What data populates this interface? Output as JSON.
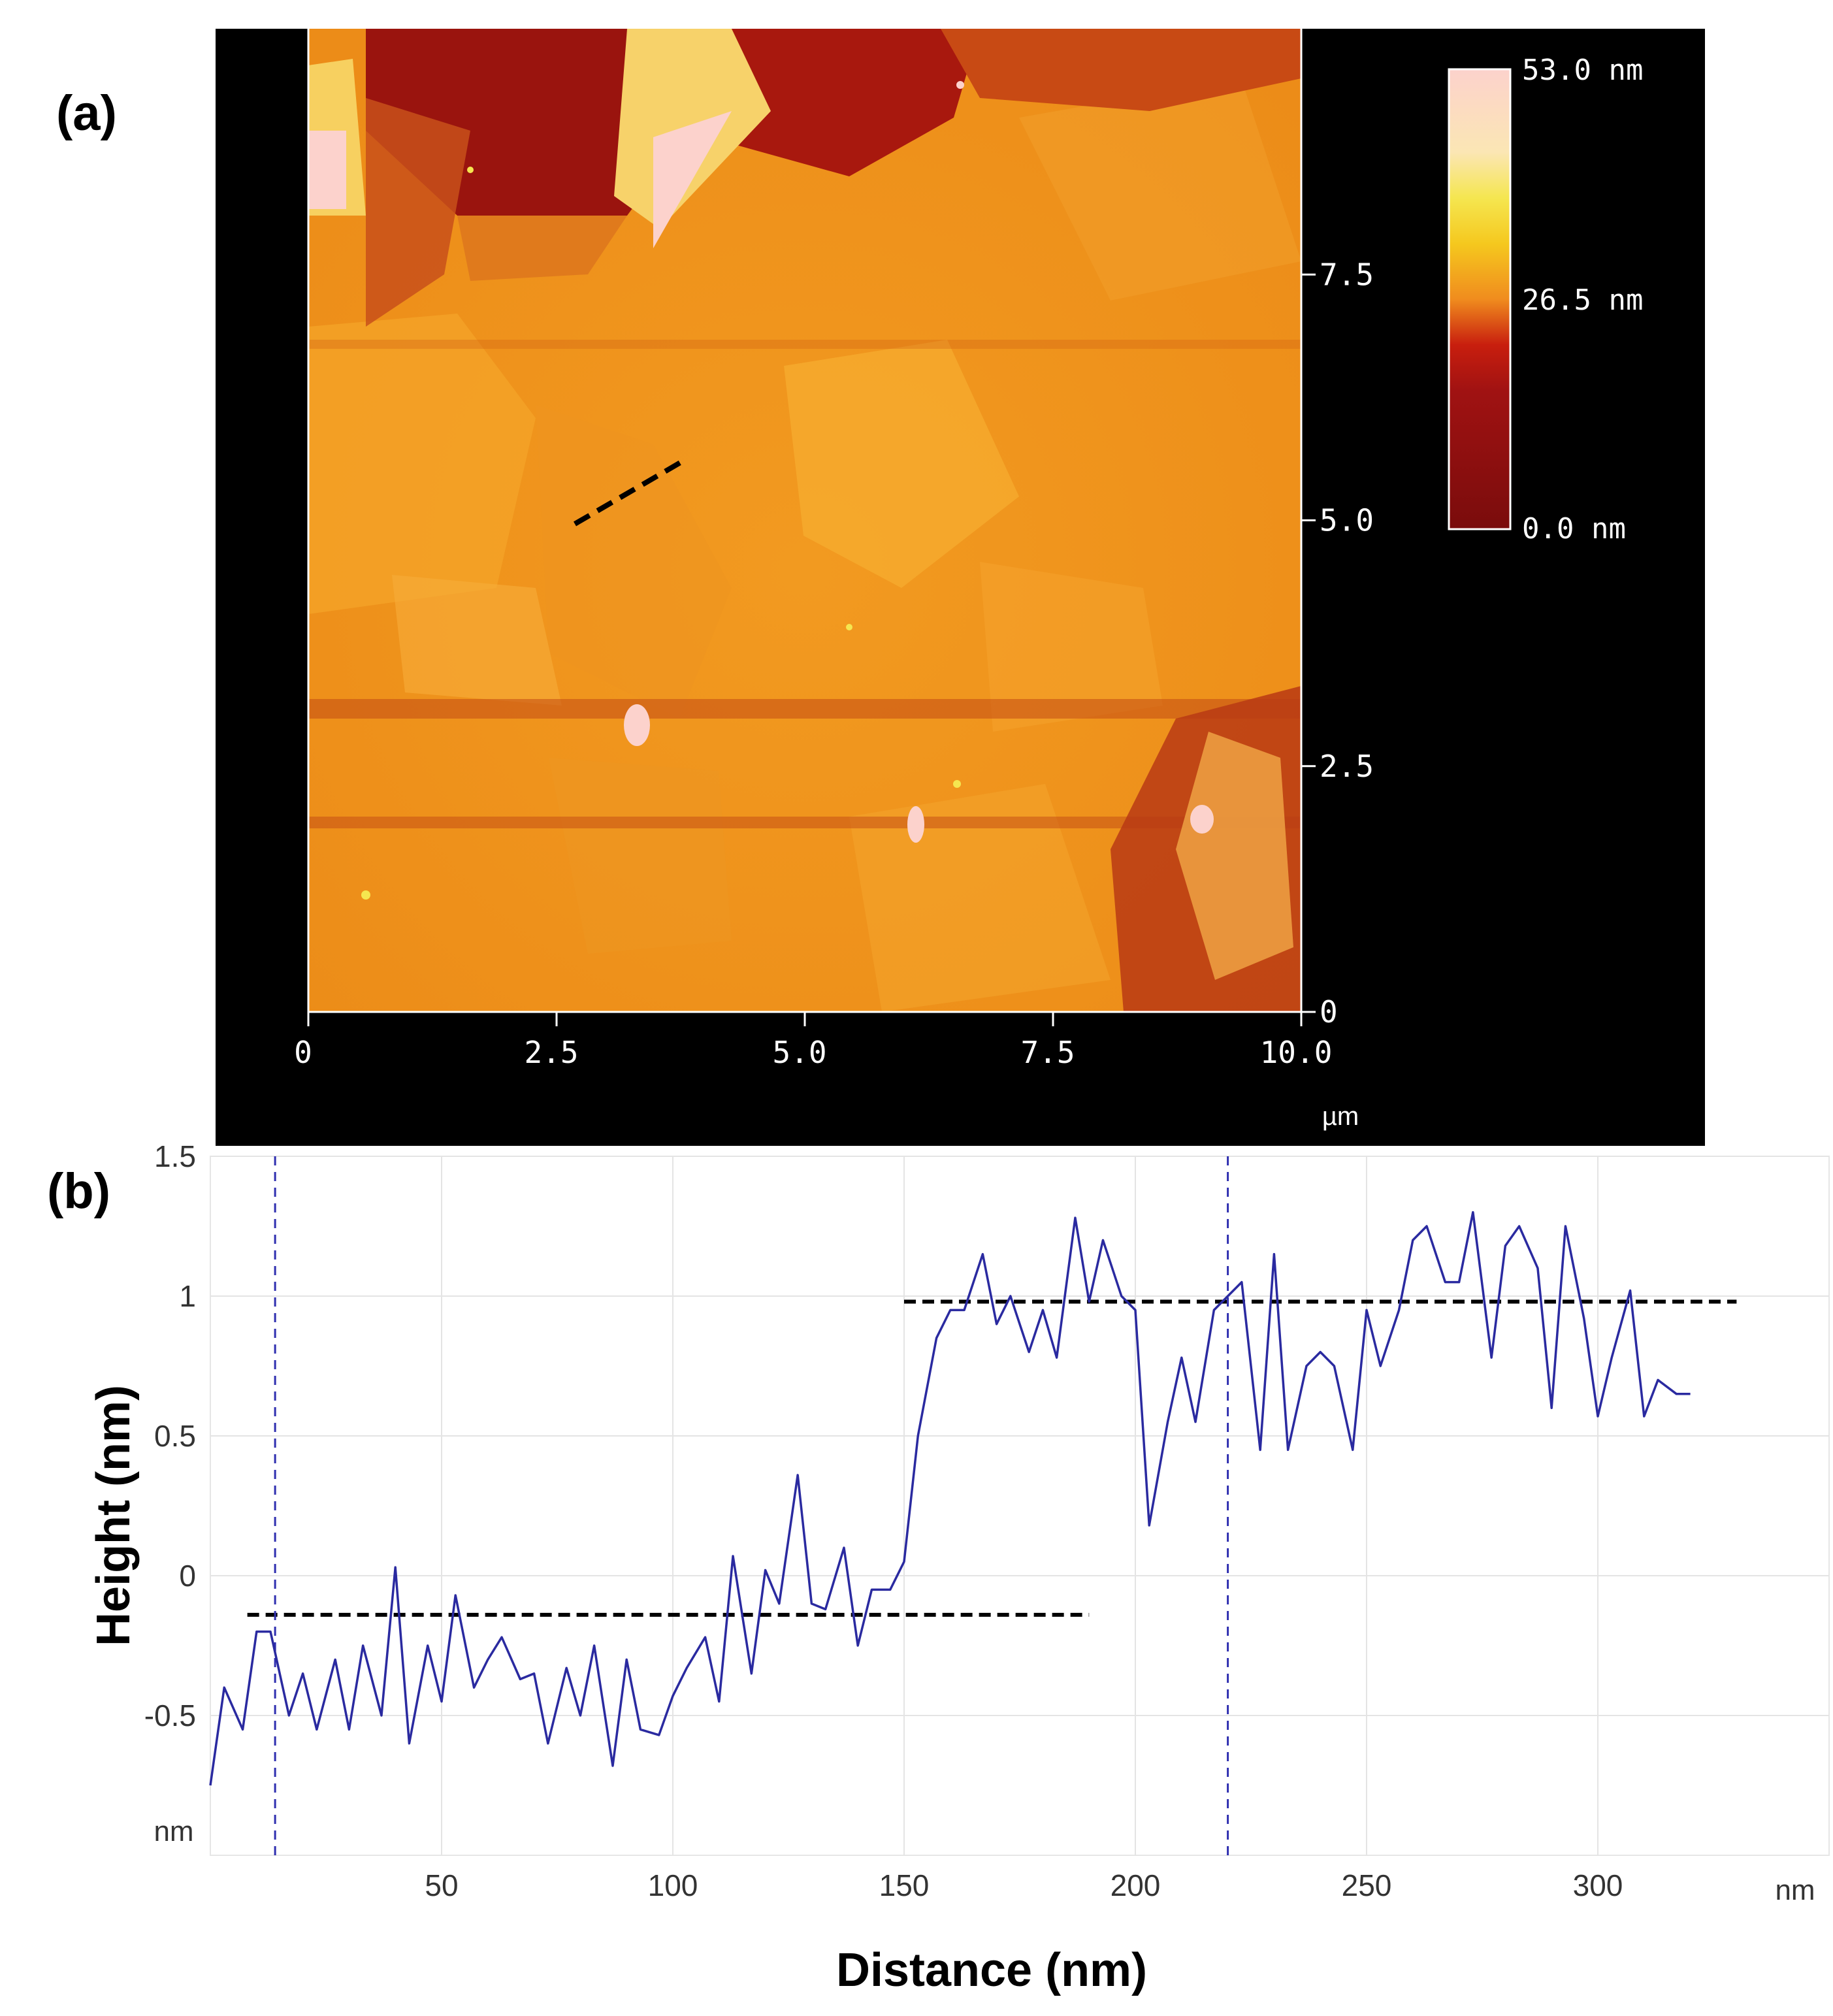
{
  "panel_a": {
    "label": "(a)",
    "x_ticks": [
      "0",
      "2.5",
      "5.0",
      "7.5",
      "10.0"
    ],
    "y_ticks": [
      "0",
      "2.5",
      "5.0",
      "7.5"
    ],
    "unit": "µm",
    "colorbar": {
      "max_label": "53.0 nm",
      "mid_label": "26.5 nm",
      "min_label": "0.0 nm"
    },
    "colors": {
      "background": "#000000",
      "surface": "#f0a21e",
      "dark": "#8b0f0f",
      "light": "#fcd2cc"
    }
  },
  "panel_b": {
    "label": "(b)"
  },
  "chart_data": {
    "type": "line",
    "title": "",
    "xlabel": "Distance (nm)",
    "ylabel": "Height (nm)",
    "x_unit": "nm",
    "y_unit": "nm",
    "xlim": [
      0,
      350
    ],
    "ylim": [
      -1,
      1.5
    ],
    "x_ticks": [
      "50",
      "100",
      "150",
      "200",
      "250",
      "300"
    ],
    "x_tick_values": [
      50,
      100,
      150,
      200,
      250,
      300
    ],
    "y_ticks": [
      "1.5",
      "1",
      "0.5",
      "0",
      "-0.5"
    ],
    "y_tick_values": [
      1.5,
      1,
      0.5,
      0,
      -0.5
    ],
    "series": [
      {
        "name": "height profile",
        "color": "#2a2aa0",
        "x": [
          0,
          3,
          7,
          10,
          13,
          17,
          20,
          23,
          27,
          30,
          33,
          37,
          40,
          43,
          47,
          50,
          53,
          57,
          60,
          63,
          67,
          70,
          73,
          77,
          80,
          83,
          87,
          90,
          93,
          97,
          100,
          103,
          107,
          110,
          113,
          117,
          120,
          123,
          127,
          130,
          133,
          137,
          140,
          143,
          147,
          150,
          153,
          157,
          160,
          163,
          167,
          170,
          173,
          177,
          180,
          183,
          187,
          190,
          193,
          197,
          200,
          203,
          207,
          210,
          213,
          217,
          220,
          223,
          227,
          230,
          233,
          237,
          240,
          243,
          247,
          250,
          253,
          257,
          260,
          263,
          267,
          270,
          273,
          277,
          280,
          283,
          287,
          290,
          293,
          297,
          300,
          303,
          307,
          310,
          313,
          317,
          320
        ],
        "values": [
          -0.75,
          -0.4,
          -0.55,
          -0.2,
          -0.2,
          -0.5,
          -0.35,
          -0.55,
          -0.3,
          -0.55,
          -0.25,
          -0.5,
          0.03,
          -0.6,
          -0.25,
          -0.45,
          -0.07,
          -0.4,
          -0.3,
          -0.22,
          -0.37,
          -0.35,
          -0.6,
          -0.33,
          -0.5,
          -0.25,
          -0.68,
          -0.3,
          -0.55,
          -0.57,
          -0.43,
          -0.33,
          -0.22,
          -0.45,
          0.07,
          -0.35,
          0.02,
          -0.1,
          0.36,
          -0.1,
          -0.12,
          0.1,
          -0.25,
          -0.05,
          -0.05,
          0.05,
          0.5,
          0.85,
          0.95,
          0.95,
          1.15,
          0.9,
          1.0,
          0.8,
          0.95,
          0.78,
          1.28,
          0.98,
          1.2,
          1.0,
          0.95,
          0.18,
          0.55,
          0.78,
          0.55,
          0.95,
          1.0,
          1.05,
          0.45,
          1.15,
          0.45,
          0.75,
          0.8,
          0.75,
          0.45,
          0.95,
          0.75,
          0.95,
          1.2,
          1.25,
          1.05,
          1.05,
          1.3,
          0.78,
          1.18,
          1.25,
          1.1,
          0.6,
          1.25,
          0.92,
          0.57,
          0.78,
          1.02,
          0.57,
          0.7,
          0.65,
          0.65
        ]
      }
    ],
    "reference_lines": [
      {
        "name": "lower-level",
        "x_start": 8,
        "x_end": 190,
        "y": -0.14
      },
      {
        "name": "upper-level",
        "x_start": 150,
        "x_end": 330,
        "y": 0.98
      }
    ],
    "markers": [
      {
        "name": "left-cursor",
        "x": 14
      },
      {
        "name": "right-cursor",
        "x": 220
      }
    ],
    "grid": true
  }
}
